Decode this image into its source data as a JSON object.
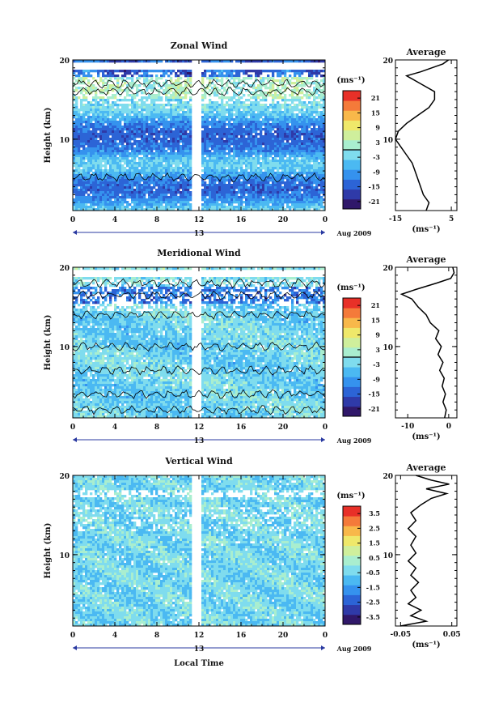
{
  "layout_note_free": true,
  "x_axis": {
    "label": "Local Time",
    "tick_labels": [
      "0",
      "4",
      "8",
      "12",
      "16",
      "20",
      "0"
    ],
    "date_marker": "13",
    "date_label": "Aug 2009"
  },
  "colorbar_unit": "(ms⁻¹)",
  "panels": [
    {
      "id": "zonal",
      "title": "Zonal Wind",
      "ylabel": "Height (km)",
      "height_ticks": [
        "20",
        "10"
      ],
      "colorbar_ticks": [
        "21",
        "15",
        "9",
        "3",
        "-3",
        "-9",
        "-15",
        "-21"
      ],
      "colorbar_range": [
        -24,
        24
      ],
      "colorbar_line_value": 0,
      "has_contours": true,
      "avg_title": "Average",
      "avg_xlim": [
        -15,
        7
      ],
      "avg_xticks": [
        -15,
        5
      ],
      "avg_xtick_labels": [
        "-15",
        "5"
      ],
      "avg_unit": "(ms⁻¹)",
      "avg_profile": [
        [
          1,
          -4
        ],
        [
          2,
          -3
        ],
        [
          3,
          -5
        ],
        [
          4,
          -6
        ],
        [
          5,
          -7
        ],
        [
          6,
          -8
        ],
        [
          7,
          -9
        ],
        [
          8,
          -11
        ],
        [
          9,
          -13
        ],
        [
          10,
          -15
        ],
        [
          11,
          -14
        ],
        [
          12,
          -11
        ],
        [
          13,
          -7
        ],
        [
          14,
          -3
        ],
        [
          15,
          -1
        ],
        [
          16,
          -1
        ],
        [
          17,
          -6
        ],
        [
          18,
          -11
        ],
        [
          18.5,
          -6
        ],
        [
          19,
          -2
        ],
        [
          19.5,
          2
        ],
        [
          20,
          4
        ]
      ]
    },
    {
      "id": "meridional",
      "title": "Meridional Wind",
      "ylabel": "Height (km)",
      "height_ticks": [
        "20",
        "10"
      ],
      "colorbar_ticks": [
        "21",
        "15",
        "9",
        "3",
        "-3",
        "-9",
        "-15",
        "-21"
      ],
      "colorbar_range": [
        -24,
        24
      ],
      "colorbar_line_value": 0,
      "has_contours": true,
      "avg_title": "Average",
      "avg_xlim": [
        -13,
        2
      ],
      "avg_xticks": [
        -10,
        0
      ],
      "avg_xtick_labels": [
        "-10",
        "0"
      ],
      "avg_unit": "(ms⁻¹)",
      "avg_profile": [
        [
          1,
          -1
        ],
        [
          2,
          -0.6
        ],
        [
          3,
          -1.4
        ],
        [
          4,
          -0.8
        ],
        [
          5,
          -1.6
        ],
        [
          6,
          -1.1
        ],
        [
          7,
          -2.2
        ],
        [
          8,
          -1.4
        ],
        [
          9,
          -2.6
        ],
        [
          10,
          -1.8
        ],
        [
          11,
          -3.2
        ],
        [
          12,
          -2.4
        ],
        [
          13,
          -4.5
        ],
        [
          14,
          -5.5
        ],
        [
          15,
          -7.5
        ],
        [
          16,
          -9
        ],
        [
          16.6,
          -11.5
        ],
        [
          17.2,
          -8
        ],
        [
          18,
          -3
        ],
        [
          18.6,
          0.5
        ],
        [
          19.3,
          1.3
        ],
        [
          20,
          1
        ]
      ]
    },
    {
      "id": "vertical",
      "title": "Vertical Wind",
      "ylabel": "Height (km)",
      "height_ticks": [
        "20",
        "10"
      ],
      "colorbar_ticks": [
        "3.5",
        "2.5",
        "1.5",
        "0.5",
        "-0.5",
        "-1.5",
        "-2.5",
        "-3.5"
      ],
      "colorbar_range": [
        -4,
        4
      ],
      "colorbar_line_value": null,
      "has_contours": false,
      "avg_title": "Average",
      "avg_xlim": [
        -0.06,
        0.06
      ],
      "avg_xticks": [
        -0.05,
        0.05
      ],
      "avg_xtick_labels": [
        "-0.05",
        "0.05"
      ],
      "avg_unit": "(ms⁻¹)",
      "avg_profile": [
        [
          1,
          -0.05
        ],
        [
          1.6,
          0.0
        ],
        [
          2.3,
          -0.03
        ],
        [
          3,
          -0.01
        ],
        [
          3.8,
          -0.035
        ],
        [
          4.6,
          -0.02
        ],
        [
          5.5,
          -0.03
        ],
        [
          6.5,
          -0.015
        ],
        [
          7.4,
          -0.03
        ],
        [
          8.3,
          -0.02
        ],
        [
          9.2,
          -0.035
        ],
        [
          10.2,
          -0.02
        ],
        [
          11.2,
          -0.03
        ],
        [
          12.3,
          -0.02
        ],
        [
          13.3,
          -0.035
        ],
        [
          14.3,
          -0.02
        ],
        [
          15.3,
          -0.03
        ],
        [
          16.3,
          -0.01
        ],
        [
          17.1,
          0.01
        ],
        [
          17.7,
          0.04
        ],
        [
          18.3,
          0.0
        ],
        [
          18.9,
          0.045
        ],
        [
          19.4,
          0.01
        ],
        [
          20,
          -0.02
        ]
      ]
    }
  ]
}
